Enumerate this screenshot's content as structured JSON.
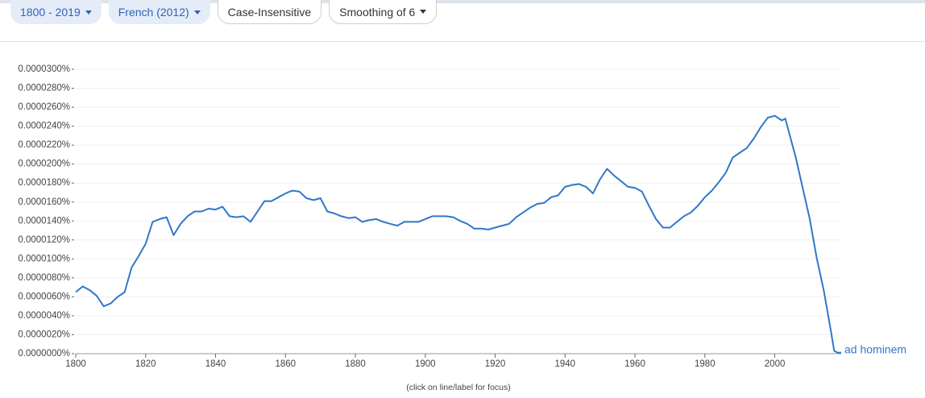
{
  "toolbar": {
    "chips": [
      "1800 - 2019",
      "French (2012)",
      "Case-Insensitive",
      "Smoothing of 6"
    ]
  },
  "chart_data": {
    "type": "line",
    "x": [
      1800,
      1802,
      1804,
      1806,
      1808,
      1810,
      1812,
      1814,
      1816,
      1818,
      1820,
      1822,
      1824,
      1826,
      1828,
      1830,
      1832,
      1834,
      1836,
      1838,
      1840,
      1842,
      1844,
      1846,
      1848,
      1850,
      1852,
      1854,
      1856,
      1858,
      1860,
      1862,
      1864,
      1866,
      1868,
      1870,
      1872,
      1874,
      1876,
      1878,
      1880,
      1882,
      1884,
      1886,
      1888,
      1890,
      1892,
      1894,
      1896,
      1898,
      1900,
      1902,
      1904,
      1906,
      1908,
      1910,
      1912,
      1914,
      1916,
      1918,
      1920,
      1922,
      1924,
      1926,
      1928,
      1930,
      1932,
      1934,
      1936,
      1938,
      1940,
      1942,
      1944,
      1946,
      1948,
      1950,
      1952,
      1954,
      1956,
      1958,
      1960,
      1962,
      1964,
      1966,
      1968,
      1970,
      1972,
      1974,
      1976,
      1978,
      1980,
      1982,
      1984,
      1986,
      1988,
      1990,
      1992,
      1994,
      1996,
      1998,
      2000,
      2002,
      2003,
      2006,
      2010,
      2012,
      2014,
      2016,
      2017,
      2018,
      2019
    ],
    "series": [
      {
        "name": "ad hominem",
        "color": "#3077c9",
        "values": [
          6.5e-06,
          7.1e-06,
          6.7e-06,
          6.1e-06,
          5e-06,
          5.3e-06,
          6e-06,
          6.5e-06,
          9.1e-06,
          1.03e-05,
          1.16e-05,
          1.39e-05,
          1.42e-05,
          1.44e-05,
          1.25e-05,
          1.37e-05,
          1.45e-05,
          1.5e-05,
          1.5e-05,
          1.53e-05,
          1.52e-05,
          1.55e-05,
          1.45e-05,
          1.44e-05,
          1.45e-05,
          1.39e-05,
          1.5e-05,
          1.61e-05,
          1.61e-05,
          1.65e-05,
          1.69e-05,
          1.72e-05,
          1.71e-05,
          1.64e-05,
          1.62e-05,
          1.64e-05,
          1.5e-05,
          1.48e-05,
          1.45e-05,
          1.43e-05,
          1.44e-05,
          1.39e-05,
          1.41e-05,
          1.42e-05,
          1.39e-05,
          1.37e-05,
          1.35e-05,
          1.39e-05,
          1.39e-05,
          1.39e-05,
          1.42e-05,
          1.45e-05,
          1.45e-05,
          1.45e-05,
          1.44e-05,
          1.4e-05,
          1.37e-05,
          1.32e-05,
          1.32e-05,
          1.31e-05,
          1.33e-05,
          1.35e-05,
          1.37e-05,
          1.44e-05,
          1.49e-05,
          1.54e-05,
          1.58e-05,
          1.59e-05,
          1.65e-05,
          1.67e-05,
          1.76e-05,
          1.78e-05,
          1.79e-05,
          1.76e-05,
          1.69e-05,
          1.84e-05,
          1.95e-05,
          1.88e-05,
          1.82e-05,
          1.76e-05,
          1.75e-05,
          1.71e-05,
          1.56e-05,
          1.42e-05,
          1.33e-05,
          1.33e-05,
          1.39e-05,
          1.45e-05,
          1.49e-05,
          1.56e-05,
          1.65e-05,
          1.72e-05,
          1.81e-05,
          1.91e-05,
          2.07e-05,
          2.12e-05,
          2.17e-05,
          2.27e-05,
          2.39e-05,
          2.49e-05,
          2.51e-05,
          2.46e-05,
          2.48e-05,
          2.07e-05,
          1.42e-05,
          1.01e-05,
          6.7e-06,
          2.5e-06,
          3e-07,
          1e-07,
          1e-07
        ]
      }
    ],
    "xlim": [
      1800,
      2019
    ],
    "xticks": [
      1800,
      1820,
      1840,
      1860,
      1880,
      1900,
      1920,
      1940,
      1960,
      1980,
      2000
    ],
    "ylim": [
      0,
      3e-05
    ],
    "yticks": [
      {
        "value": 0,
        "label": "0.0000000%"
      },
      {
        "value": 2e-06,
        "label": "0.0000020%"
      },
      {
        "value": 4e-06,
        "label": "0.0000040%"
      },
      {
        "value": 6e-06,
        "label": "0.0000060%"
      },
      {
        "value": 8e-06,
        "label": "0.0000080%"
      },
      {
        "value": 1e-05,
        "label": "0.0000100%"
      },
      {
        "value": 1.2e-05,
        "label": "0.0000120%"
      },
      {
        "value": 1.4e-05,
        "label": "0.0000140%"
      },
      {
        "value": 1.6e-05,
        "label": "0.0000160%"
      },
      {
        "value": 1.8e-05,
        "label": "0.0000180%"
      },
      {
        "value": 2e-05,
        "label": "0.0000200%"
      },
      {
        "value": 2.2e-05,
        "label": "0.0000220%"
      },
      {
        "value": 2.4e-05,
        "label": "0.0000240%"
      },
      {
        "value": 2.6e-05,
        "label": "0.0000260%"
      },
      {
        "value": 2.8e-05,
        "label": "0.0000280%"
      },
      {
        "value": 3e-05,
        "label": "0.0000300%"
      }
    ],
    "grid": true,
    "note": "(click on line/label for focus)"
  }
}
